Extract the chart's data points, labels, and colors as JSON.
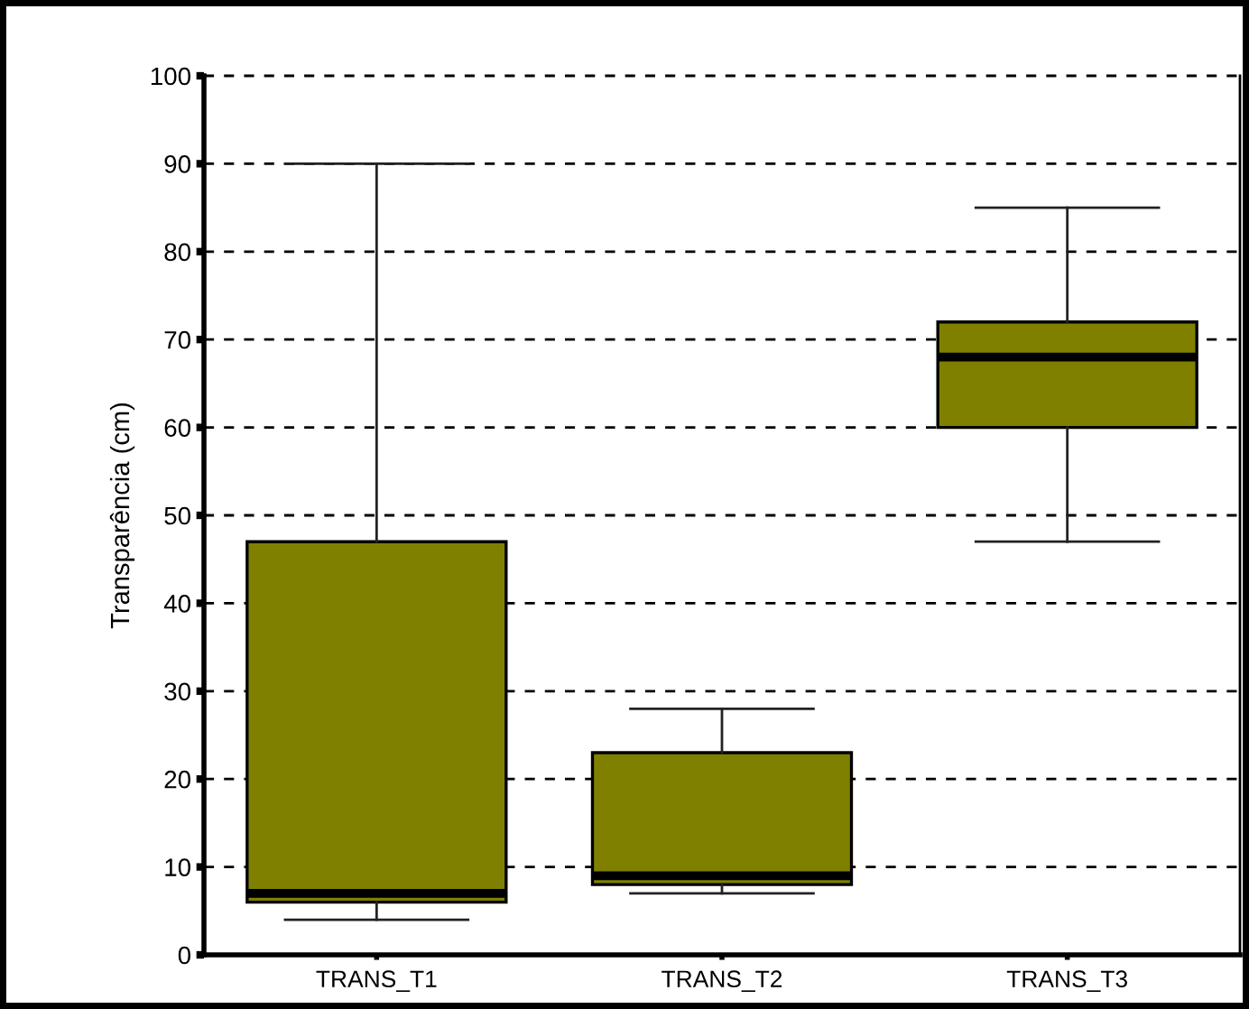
{
  "chart_data": {
    "type": "box",
    "ylabel": "Transparência (cm)",
    "categories": [
      "TRANS_T1",
      "TRANS_T2",
      "TRANS_T3"
    ],
    "boxes": [
      {
        "low": 4,
        "q1": 6,
        "median": 7,
        "q3": 47,
        "high": 90
      },
      {
        "low": 7,
        "q1": 8,
        "median": 9,
        "q3": 23,
        "high": 28
      },
      {
        "low": 47,
        "q1": 60,
        "median": 68,
        "q3": 72,
        "high": 85
      }
    ],
    "color": "#808000",
    "ylim": [
      0,
      100
    ],
    "yticks": [
      0,
      10,
      20,
      30,
      40,
      50,
      60,
      70,
      80,
      90,
      100
    ],
    "grid": "y"
  }
}
